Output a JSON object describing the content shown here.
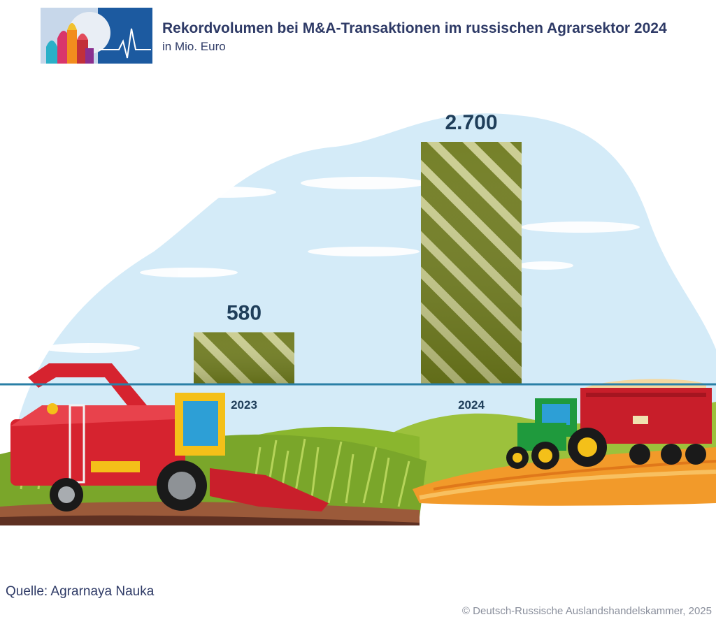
{
  "header": {
    "title": "Rekordvolumen bei M&A-Transaktionen im russischen Agrarsektor 2024",
    "subtitle": "in Mio. Euro"
  },
  "footer": {
    "source": "Quelle: Agrarnaya Nauka",
    "copyright": "© Deutsch-Russische Auslandshandelskammer, 2025"
  },
  "colors": {
    "title": "#2e3a66",
    "bar_dark": "#6e7a1e",
    "bar_light": "#c9cc8e",
    "baseline": "#2a7fa6",
    "sky": "#d4ebf8",
    "value_label": "#1f3e5a"
  },
  "chart_data": {
    "type": "bar",
    "categories": [
      "2023",
      "2024"
    ],
    "values": [
      580,
      2700
    ],
    "value_labels": [
      "580",
      "2.700"
    ],
    "title": "Rekordvolumen bei M&A-Transaktionen im russischen Agrarsektor 2024",
    "ylabel": "",
    "xlabel": "",
    "ylim": [
      0,
      2700
    ],
    "grid": false,
    "legend": "none"
  }
}
